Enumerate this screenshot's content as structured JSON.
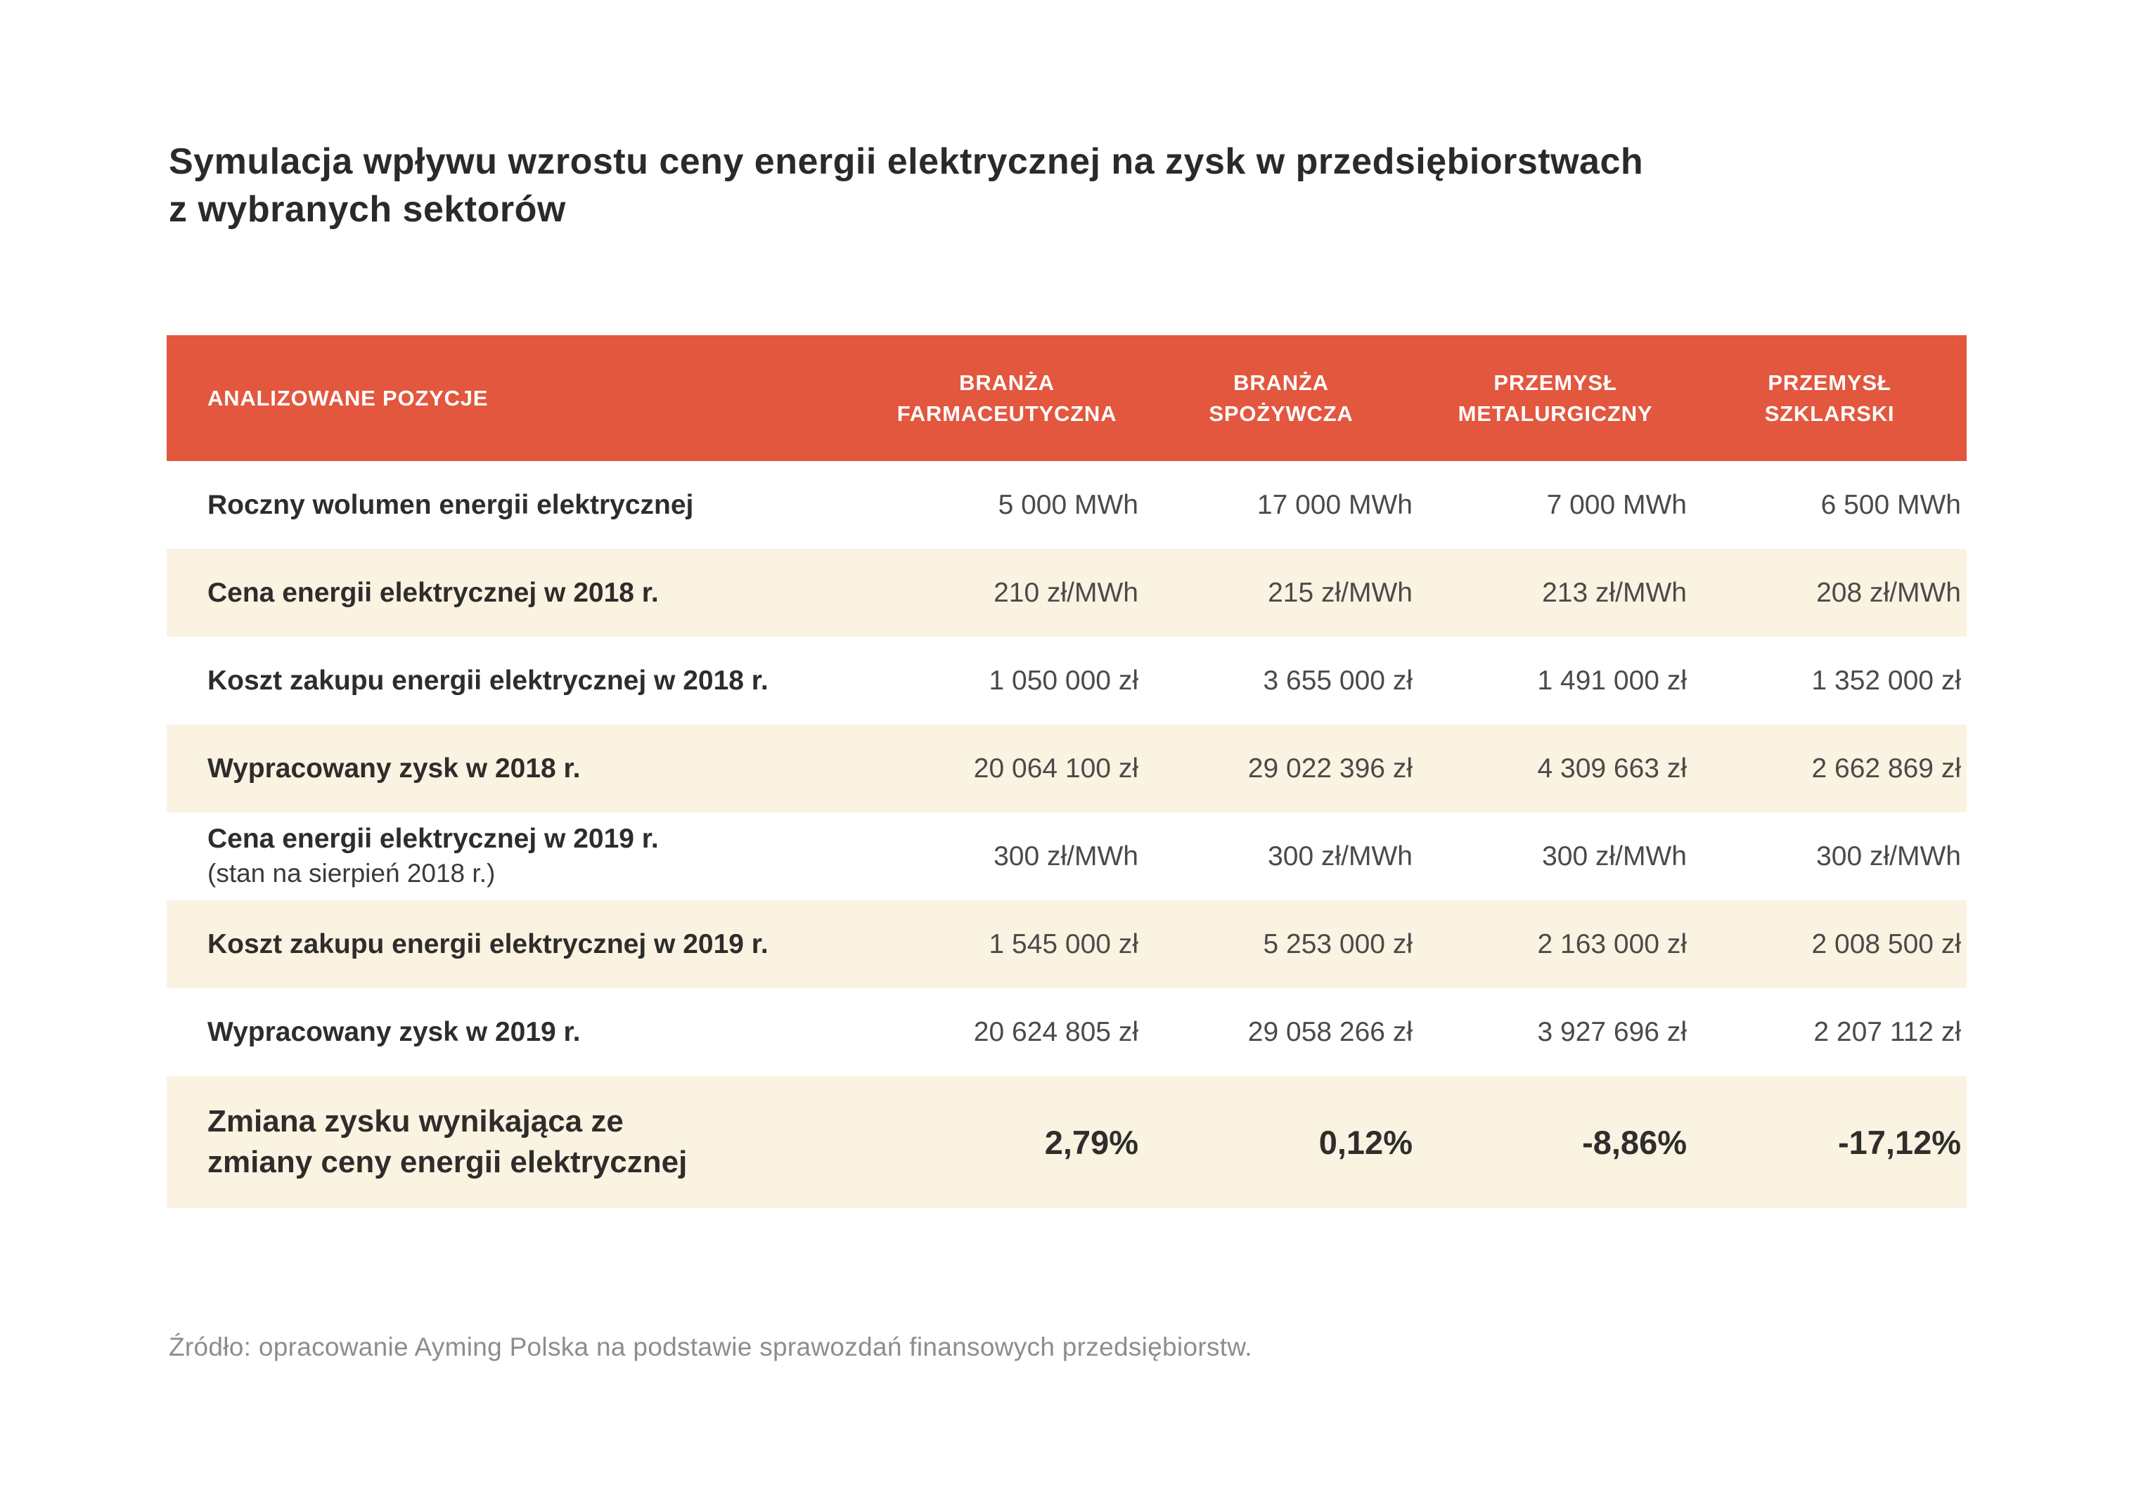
{
  "title": {
    "line1": "Symulacja wpływu wzrostu ceny energii elektrycznej na zysk w przedsiębiorstwach",
    "line2": "z wybranych sektorów"
  },
  "table": {
    "header": {
      "label": "ANALIZOWANE POZYCJE",
      "columns": [
        {
          "line1": "BRANŻA",
          "line2": "FARMACEUTYCZNA"
        },
        {
          "line1": "BRANŻA",
          "line2": "SPOŻYWCZA"
        },
        {
          "line1": "PRZEMYSŁ",
          "line2": "METALURGICZNY"
        },
        {
          "line1": "PRZEMYSŁ",
          "line2": "SZKLARSKI"
        }
      ]
    },
    "rows": [
      {
        "label": "Roczny wolumen energii elektrycznej",
        "values": [
          "5 000 MWh",
          "17 000 MWh",
          "7 000 MWh",
          "6 500 MWh"
        ],
        "highlight": false,
        "emphasis": false
      },
      {
        "label": "Cena energii elektrycznej w 2018 r.",
        "values": [
          "210 zł/MWh",
          "215 zł/MWh",
          "213 zł/MWh",
          "208 zł/MWh"
        ],
        "highlight": true,
        "emphasis": false
      },
      {
        "label": "Koszt zakupu energii elektrycznej w 2018 r.",
        "values": [
          "1 050 000 zł",
          "3 655 000 zł",
          "1 491 000 zł",
          "1 352 000 zł"
        ],
        "highlight": false,
        "emphasis": false
      },
      {
        "label": "Wypracowany zysk w 2018 r.",
        "values": [
          "20 064 100 zł",
          "29 022 396 zł",
          "4 309 663 zł",
          "2 662 869 zł"
        ],
        "highlight": true,
        "emphasis": false
      },
      {
        "label": "Cena energii elektrycznej w 2019 r.",
        "sublabel": "(stan na sierpień 2018 r.)",
        "values": [
          "300 zł/MWh",
          "300 zł/MWh",
          "300 zł/MWh",
          "300 zł/MWh"
        ],
        "highlight": false,
        "emphasis": false
      },
      {
        "label": "Koszt zakupu energii elektrycznej w 2019 r.",
        "values": [
          "1 545 000 zł",
          "5 253 000 zł",
          "2 163 000 zł",
          "2 008 500 zł"
        ],
        "highlight": true,
        "emphasis": false
      },
      {
        "label": "Wypracowany zysk w 2019 r.",
        "values": [
          "20 624 805 zł",
          "29 058 266 zł",
          "3 927 696 zł",
          "2 207 112 zł"
        ],
        "highlight": false,
        "emphasis": false
      },
      {
        "label": "Zmiana zysku wynikająca ze",
        "label_line2": "zmiany ceny energii elektrycznej",
        "values": [
          "2,79%",
          "0,12%",
          "-8,86%",
          "-17,12%"
        ],
        "highlight": true,
        "emphasis": true
      }
    ]
  },
  "source": "Źródło: opracowanie Ayming Polska na podstawie sprawozdań finansowych przedsiębiorstw.",
  "colors": {
    "header_bg": "#e2573e",
    "highlight_row_bg": "#fbf3e2",
    "header_text": "#ffffff",
    "title_text": "#2b2a28",
    "label_text": "#2e2d2b",
    "value_text": "#4b4a48",
    "source_text": "#8e8d8b"
  }
}
